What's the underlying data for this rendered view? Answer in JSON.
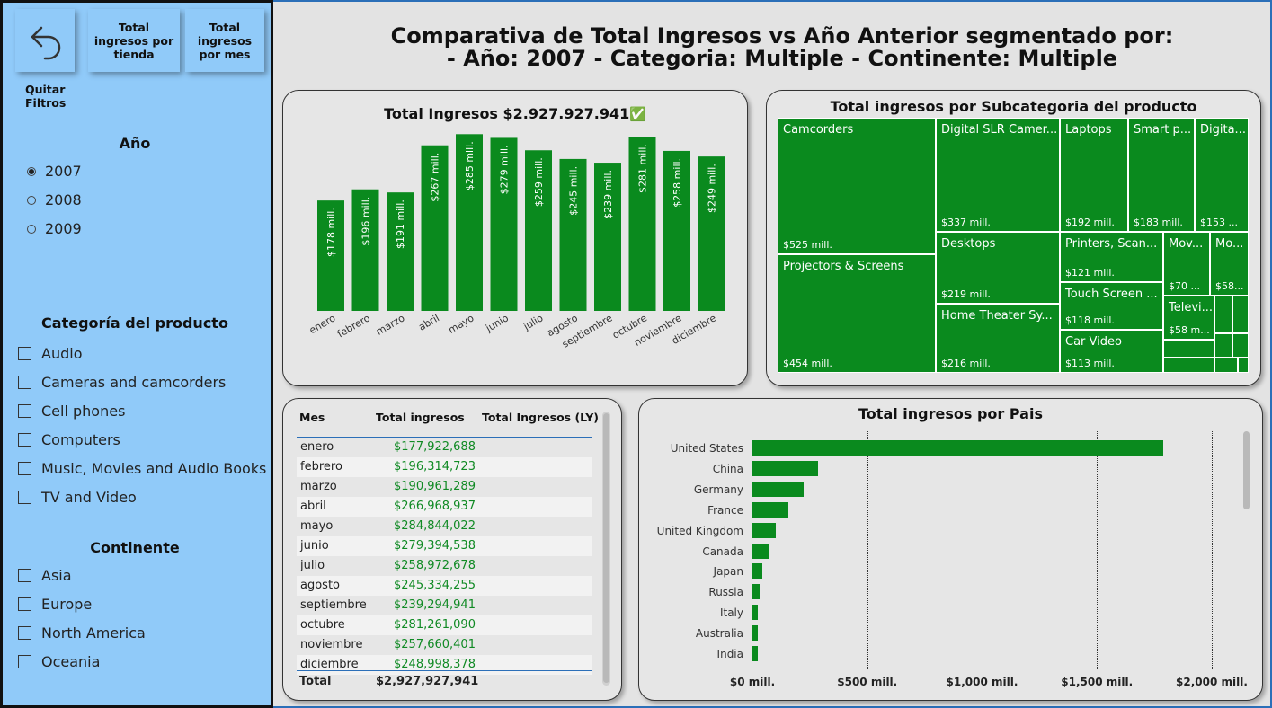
{
  "nav": {
    "back_label": "Quitar Filtros",
    "store_button": "Total ingresos por tienda",
    "month_button": "Total ingresos por mes"
  },
  "filters": {
    "year": {
      "title": "Año",
      "options": [
        "2007",
        "2008",
        "2009"
      ],
      "selected": "2007"
    },
    "category": {
      "title": "Categoría del producto",
      "options": [
        "Audio",
        "Cameras and camcorders",
        "Cell phones",
        "Computers",
        "Music, Movies and Audio Books",
        "TV and Video"
      ]
    },
    "continent": {
      "title": "Continente",
      "options": [
        "Asia",
        "Europe",
        "North America",
        "Oceania"
      ]
    }
  },
  "page_title_line1": "Comparativa de Total Ingresos vs Año Anterior segmentado por:",
  "page_title_line2": "- Año: 2007 - Categoria: Multiple - Continente: Multiple",
  "monthly_chart": {
    "title": "Total Ingresos $2.927.927.941",
    "check_icon": "✅"
  },
  "treemap": {
    "title": "Total ingresos por Subcategoria del producto",
    "cells": [
      {
        "name": "Camcorders",
        "value": "$525 mill."
      },
      {
        "name": "Projectors & Screens",
        "value": "$454 mill."
      },
      {
        "name": "Digital SLR Camer...",
        "value": "$337 mill."
      },
      {
        "name": "Desktops",
        "value": "$219 mill."
      },
      {
        "name": "Home Theater Sy...",
        "value": "$216 mill."
      },
      {
        "name": "Laptops",
        "value": "$192 mill."
      },
      {
        "name": "Smart p...",
        "value": "$183 mill."
      },
      {
        "name": "Digita...",
        "value": "$153 ..."
      },
      {
        "name": "Printers, Scan...",
        "value": "$121 mill."
      },
      {
        "name": "Touch Screen ...",
        "value": "$118 mill."
      },
      {
        "name": "Car Video",
        "value": "$113 mill."
      },
      {
        "name": "Mov...",
        "value": "$70 ..."
      },
      {
        "name": "Mo...",
        "value": "$58..."
      },
      {
        "name": "Televi...",
        "value": "$58 m..."
      }
    ]
  },
  "month_table": {
    "headers": [
      "Mes",
      "Total ingresos",
      "Total Ingresos (LY)"
    ],
    "rows": [
      {
        "mes": "enero",
        "total": "$177,922,688"
      },
      {
        "mes": "febrero",
        "total": "$196,314,723"
      },
      {
        "mes": "marzo",
        "total": "$190,961,289"
      },
      {
        "mes": "abril",
        "total": "$266,968,937"
      },
      {
        "mes": "mayo",
        "total": "$284,844,022"
      },
      {
        "mes": "junio",
        "total": "$279,394,538"
      },
      {
        "mes": "julio",
        "total": "$258,972,678"
      },
      {
        "mes": "agosto",
        "total": "$245,334,255"
      },
      {
        "mes": "septiembre",
        "total": "$239,294,941"
      },
      {
        "mes": "octubre",
        "total": "$281,261,090"
      },
      {
        "mes": "noviembre",
        "total": "$257,660,401"
      },
      {
        "mes": "diciembre",
        "total": "$248,998,378"
      }
    ],
    "total_label": "Total",
    "total_value": "$2,927,927,941"
  },
  "country_chart_title": "Total ingresos por Pais",
  "chart_data": [
    {
      "type": "bar",
      "categories": [
        "enero",
        "febrero",
        "marzo",
        "abril",
        "mayo",
        "junio",
        "julio",
        "agosto",
        "septiembre",
        "octubre",
        "noviembre",
        "diciembre"
      ],
      "values": [
        178,
        196,
        191,
        267,
        285,
        279,
        259,
        245,
        239,
        281,
        258,
        249
      ],
      "data_labels": [
        "$178 mill.",
        "$196 mill.",
        "$191 mill.",
        "$267 mill.",
        "$285 mill.",
        "$279 mill.",
        "$259 mill.",
        "$245 mill.",
        "$239 mill.",
        "$281 mill.",
        "$258 mill.",
        "$249 mill."
      ],
      "title": "Total Ingresos $2.927.927.941",
      "ylim": [
        0,
        300
      ],
      "color": "#0a8a1e"
    },
    {
      "type": "bar",
      "orientation": "horizontal",
      "title": "Total ingresos por Pais",
      "categories": [
        "United States",
        "China",
        "Germany",
        "France",
        "United Kingdom",
        "Canada",
        "Japan",
        "Russia",
        "Italy",
        "Australia",
        "India"
      ],
      "values": [
        1790,
        285,
        222,
        158,
        102,
        74,
        42,
        32,
        25,
        24,
        22
      ],
      "xlim": [
        0,
        2150
      ],
      "xticks": [
        0,
        500,
        1000,
        1500,
        2000
      ],
      "xtick_labels": [
        "$0 mill.",
        "$500 mill.",
        "$1,000 mill.",
        "$1,500 mill.",
        "$2,000 mill."
      ],
      "grid": true,
      "color": "#0a8a1e"
    }
  ]
}
